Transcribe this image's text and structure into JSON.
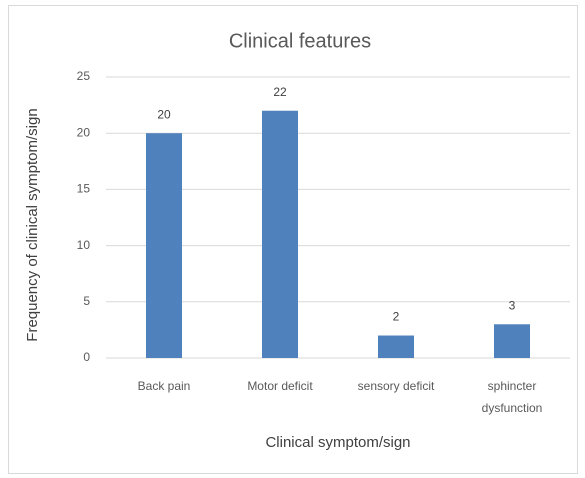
{
  "chart_data": {
    "type": "bar",
    "title": "Clinical features",
    "categories": [
      "Back pain",
      "Motor deficit",
      "sensory deficit",
      "sphincter dysfunction"
    ],
    "values": [
      20,
      22,
      2,
      3
    ],
    "color": "#4f81bd",
    "xlabel": "Clinical symptom/sign",
    "ylabel": "Frequency of clinical symptom/sign",
    "ylim": [
      0,
      25
    ],
    "yticks": [
      0,
      5,
      10,
      15,
      20,
      25
    ],
    "grid": true
  }
}
